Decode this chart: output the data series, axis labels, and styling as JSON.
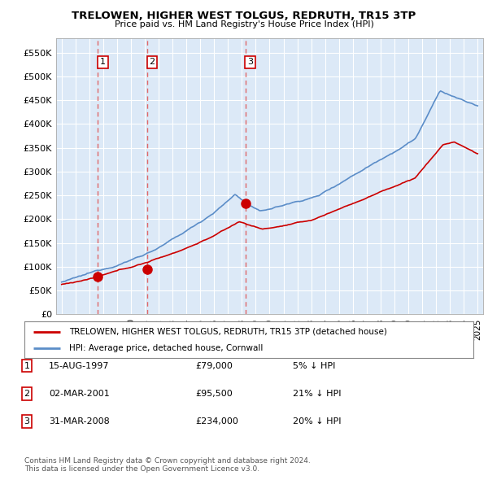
{
  "title": "TRELOWEN, HIGHER WEST TOLGUS, REDRUTH, TR15 3TP",
  "subtitle": "Price paid vs. HM Land Registry's House Price Index (HPI)",
  "ylabel_ticks": [
    "£0",
    "£50K",
    "£100K",
    "£150K",
    "£200K",
    "£250K",
    "£300K",
    "£350K",
    "£400K",
    "£450K",
    "£500K",
    "£550K"
  ],
  "ylim": [
    0,
    580000
  ],
  "xlim_start": 1994.6,
  "xlim_end": 2025.4,
  "transaction_dates": [
    1997.62,
    2001.17,
    2008.25
  ],
  "transaction_prices": [
    79000,
    95500,
    234000
  ],
  "transaction_labels": [
    "1",
    "2",
    "3"
  ],
  "legend_entries": [
    "TRELOWEN, HIGHER WEST TOLGUS, REDRUTH, TR15 3TP (detached house)",
    "HPI: Average price, detached house, Cornwall"
  ],
  "table_rows": [
    {
      "label": "1",
      "date": "15-AUG-1997",
      "price": "£79,000",
      "hpi": "5% ↓ HPI"
    },
    {
      "label": "2",
      "date": "02-MAR-2001",
      "price": "£95,500",
      "hpi": "21% ↓ HPI"
    },
    {
      "label": "3",
      "date": "31-MAR-2008",
      "price": "£234,000",
      "hpi": "20% ↓ HPI"
    }
  ],
  "footer": "Contains HM Land Registry data © Crown copyright and database right 2024.\nThis data is licensed under the Open Government Licence v3.0.",
  "hpi_color": "#5b8dc8",
  "price_color": "#cc0000",
  "vline_color": "#e05050",
  "bg_color": "#dce9f7",
  "grid_color": "#ffffff"
}
